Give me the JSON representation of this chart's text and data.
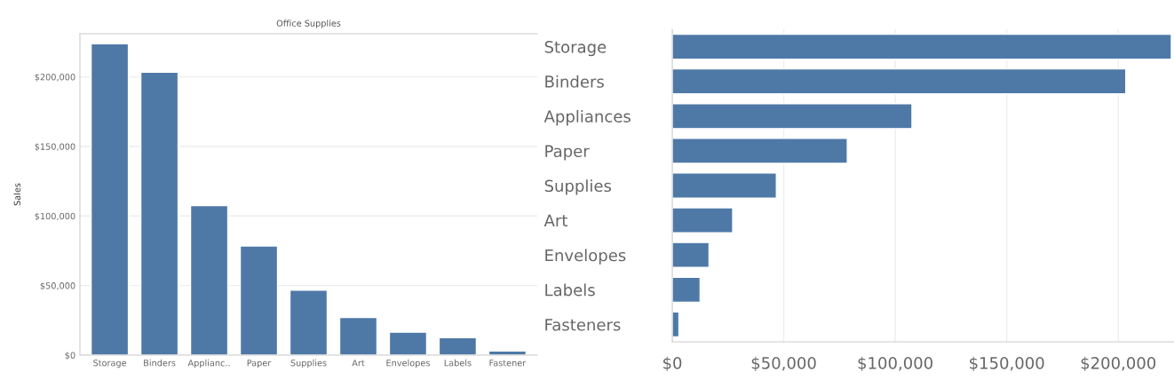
{
  "chart_data": [
    {
      "type": "bar",
      "title": "Office Supplies",
      "ylabel": "Sales",
      "categories": [
        "Storage",
        "Binders",
        "Applianc..",
        "Paper",
        "Supplies",
        "Art",
        "Envelopes",
        "Labels",
        "Fastener"
      ],
      "values": [
        223800,
        203400,
        107500,
        78500,
        46700,
        27100,
        16500,
        12500,
        3000
      ],
      "color": "#4e79a7",
      "ylim": [
        0,
        231000
      ],
      "yticks": [
        {
          "value": 0,
          "label": "$0"
        },
        {
          "value": 50000,
          "label": "$50,000"
        },
        {
          "value": 100000,
          "label": "$100,000"
        },
        {
          "value": 150000,
          "label": "$150,000"
        },
        {
          "value": 200000,
          "label": "$200,000"
        }
      ],
      "grid": "y"
    },
    {
      "type": "bar",
      "orientation": "horizontal",
      "categories": [
        "Storage",
        "Binders",
        "Appliances",
        "Paper",
        "Supplies",
        "Art",
        "Envelopes",
        "Labels",
        "Fasteners"
      ],
      "values": [
        223800,
        203400,
        107500,
        78500,
        46700,
        27100,
        16500,
        12500,
        3000
      ],
      "color": "#4e79a7",
      "xlim": [
        0,
        225000
      ],
      "xticks": [
        {
          "value": 0,
          "label": "$0"
        },
        {
          "value": 50000,
          "label": "$50,000"
        },
        {
          "value": 100000,
          "label": "$100,000"
        },
        {
          "value": 150000,
          "label": "$150,000"
        },
        {
          "value": 200000,
          "label": "$200,000"
        }
      ],
      "grid": "x"
    }
  ]
}
